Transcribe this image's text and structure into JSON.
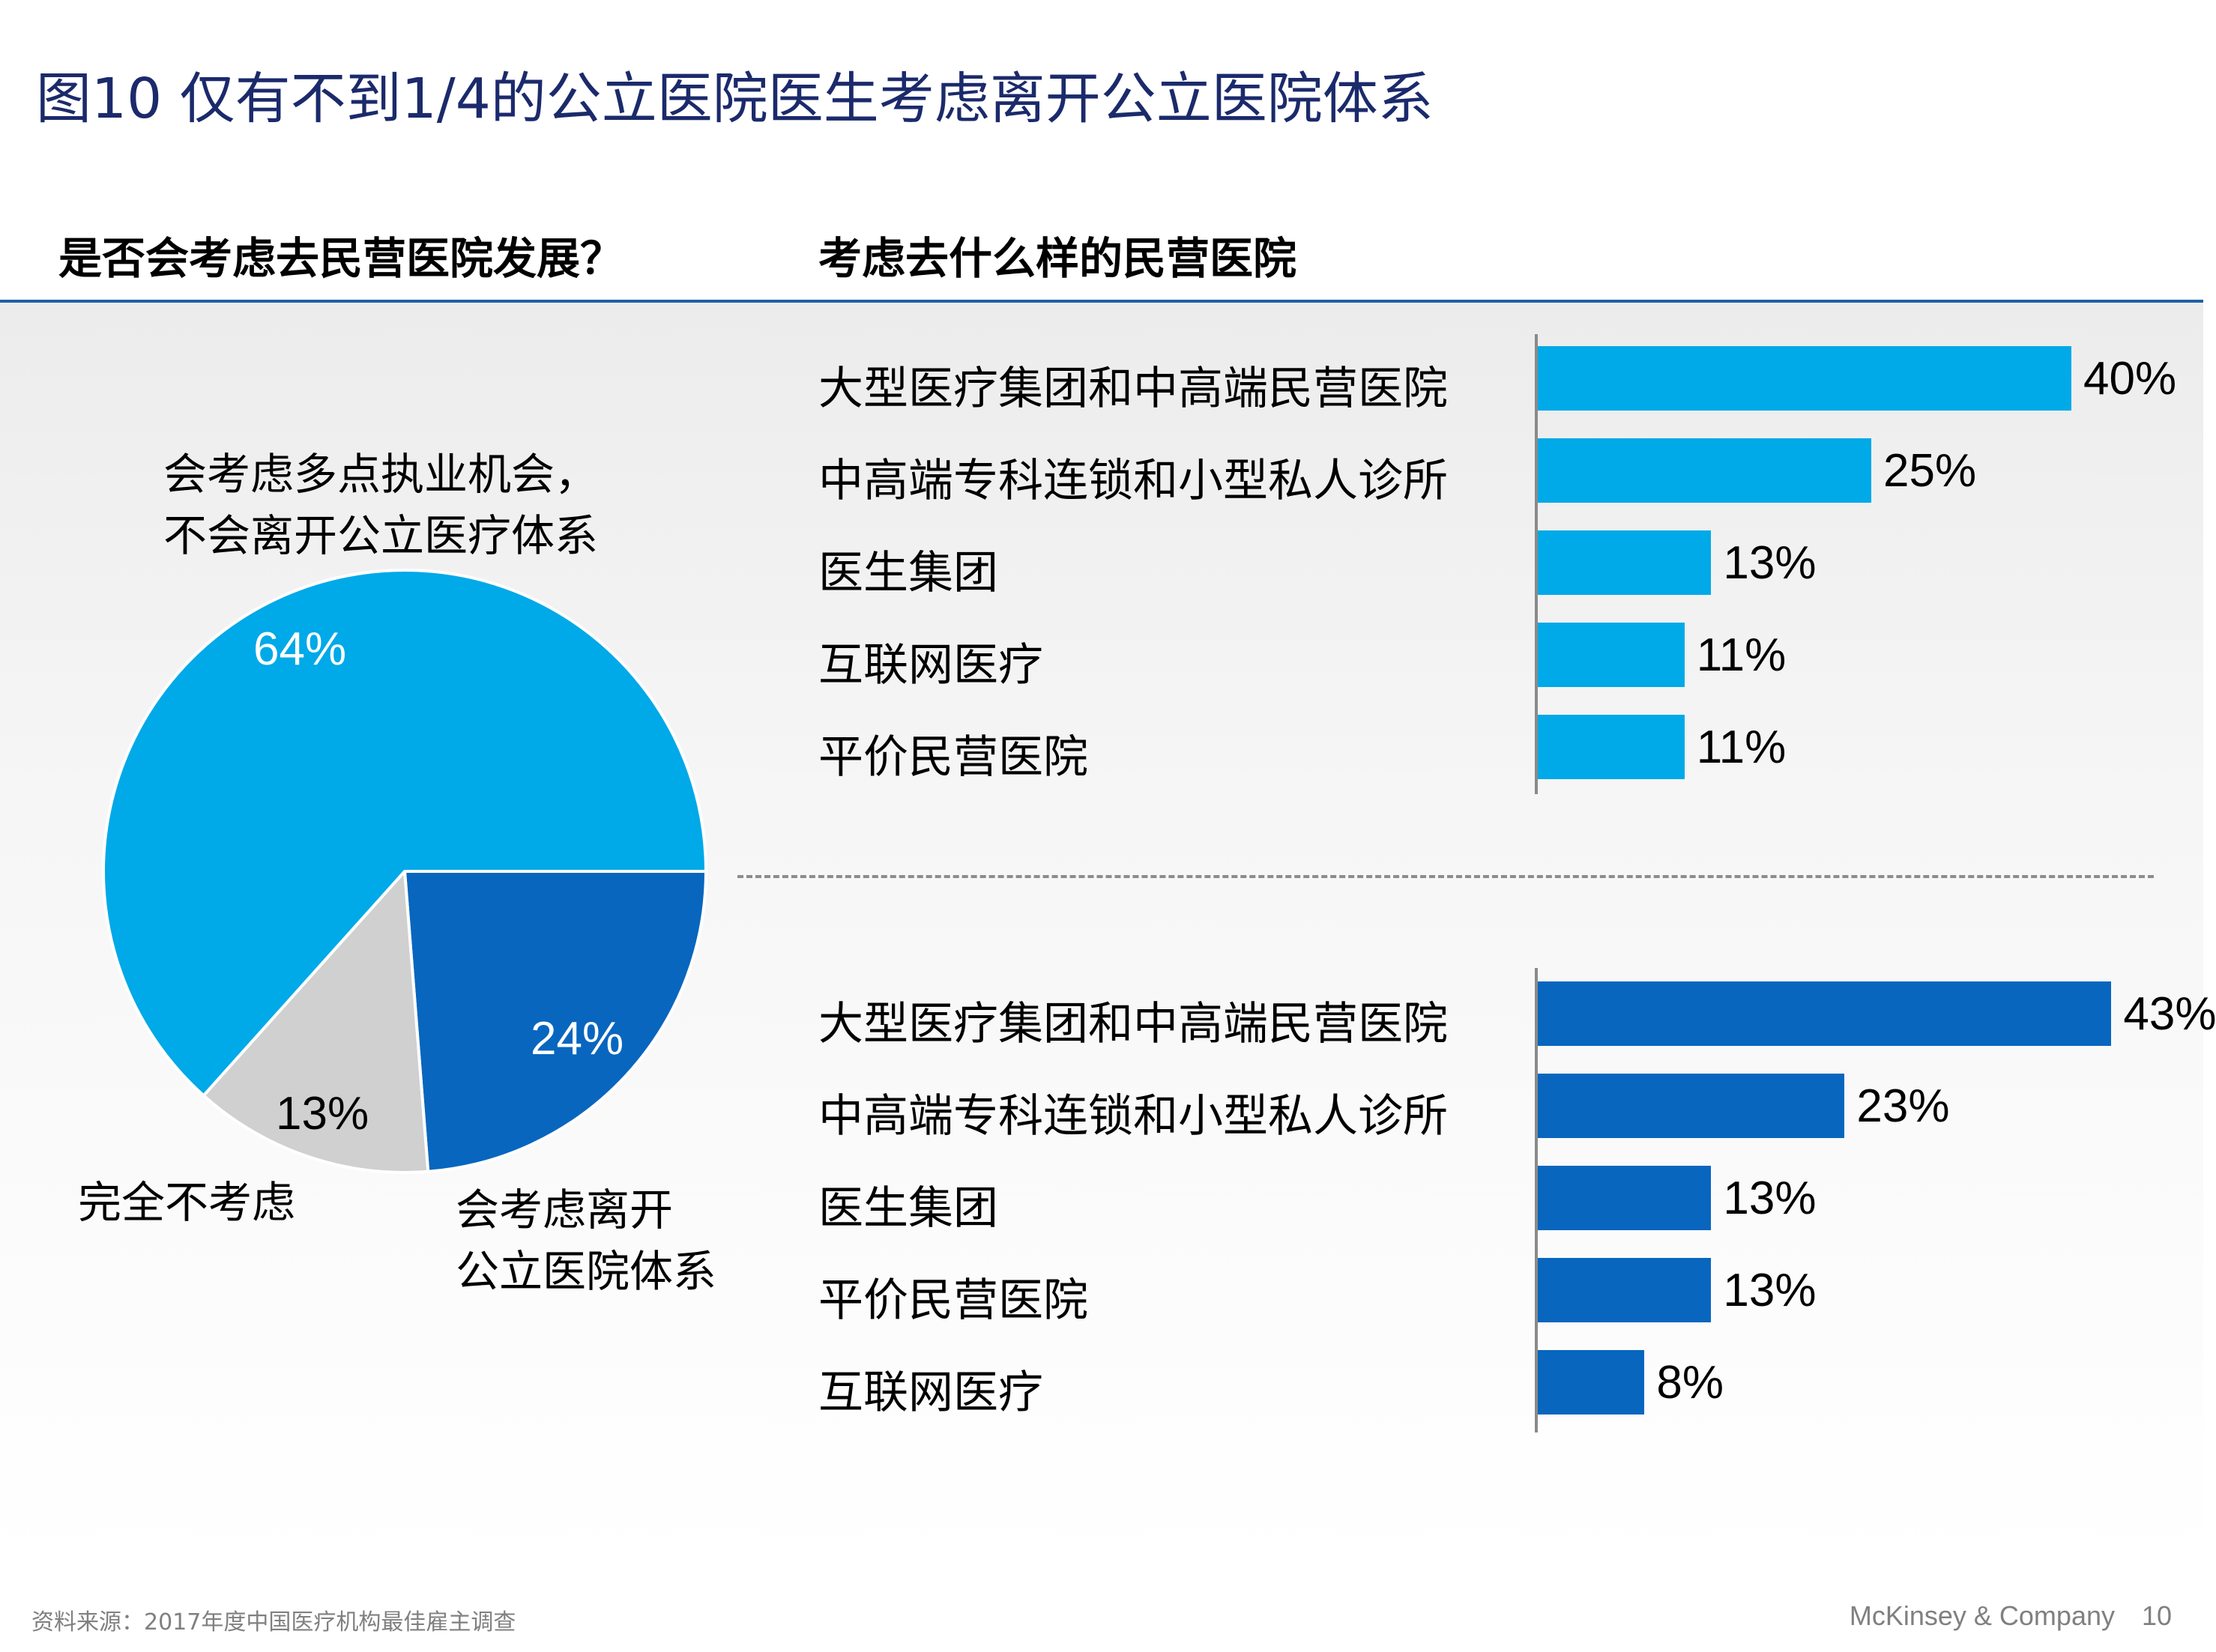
{
  "page_title": "图10 仅有不到1/4的公立医院医生考虑离开公立医院体系",
  "left_heading": "是否会考虑去民营医院发展？",
  "right_heading": "考虑去什么样的民营医院",
  "colors": {
    "light_blue": "#00a9e8",
    "dark_blue": "#0866bf",
    "grey": "#d0d0d0",
    "title": "#1b2a6b"
  },
  "chart_data": [
    {
      "type": "pie",
      "title": "是否会考虑去民营医院发展？",
      "slices": [
        {
          "label_line1": "会考虑多点执业机会，",
          "label_line2": "不会离开公立医疗体系",
          "value": 64,
          "value_label": "64%",
          "color": "#00a9e8"
        },
        {
          "label_line1": "会考虑离开",
          "label_line2": "公立医院体系",
          "value": 24,
          "value_label": "24%",
          "color": "#0866bf"
        },
        {
          "label_line1": "完全不考虑",
          "label_line2": "",
          "value": 13,
          "value_label": "13%",
          "color": "#d0d0d0"
        }
      ]
    },
    {
      "type": "bar",
      "orientation": "horizontal",
      "title": "考虑去什么样的民营医院",
      "categories": [
        "大型医疗集团和中高端民营医院",
        "中高端专科连锁和小型私人诊所",
        "医生集团",
        "互联网医疗",
        "平价民营医院"
      ],
      "values": [
        40,
        25,
        13,
        11,
        11
      ],
      "value_labels": [
        "40%",
        "25%",
        "13%",
        "11%",
        "11%"
      ],
      "color": "#00a9e8"
    },
    {
      "type": "bar",
      "orientation": "horizontal",
      "categories": [
        "大型医疗集团和中高端民营医院",
        "中高端专科连锁和小型私人诊所",
        "医生集团",
        "平价民营医院",
        "互联网医疗"
      ],
      "values": [
        43,
        23,
        13,
        13,
        8
      ],
      "value_labels": [
        "43%",
        "23%",
        "13%",
        "13%",
        "8%"
      ],
      "color": "#0866bf"
    }
  ],
  "footer": {
    "source": "资料来源：2017年度中国医疗机构最佳雇主调查",
    "brand": "McKinsey & Company",
    "page_number": "10"
  }
}
